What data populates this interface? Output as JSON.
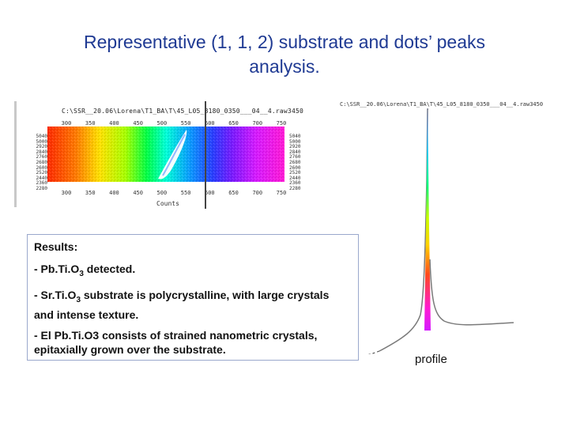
{
  "slide": {
    "title_line1": "Representative (1, 1, 2) substrate and dots’ peaks",
    "title_line2": "analysis."
  },
  "map_panel": {
    "file_label": "C:\\SSR__20.06\\Lorena\\T1_BA\\T\\45_L05_8180_0350___04__4.raw3450",
    "top_ticks": [
      "300",
      "350",
      "400",
      "450",
      "500",
      "550",
      "600",
      "650",
      "700",
      "750"
    ],
    "bottom_ticks": [
      "300",
      "350",
      "400",
      "450",
      "500",
      "550",
      "600",
      "650",
      "700",
      "750"
    ],
    "left_ticks": [
      "5040",
      "5000",
      "2920",
      "2840",
      "2760",
      "2680",
      "2600",
      "2520",
      "2440",
      "2360",
      "2280"
    ],
    "right_ticks": [
      "5040",
      "5000",
      "2920",
      "2840",
      "2760",
      "2680",
      "2600",
      "2520",
      "2440",
      "2360",
      "2280"
    ],
    "x_axis_label": "Counts"
  },
  "results": {
    "heading": "Results:",
    "item1_pre": "- Pb.Ti.O",
    "item1_sub": "3",
    "item1_post": " detected.",
    "item2_pre": "- Sr.Ti.O",
    "item2_sub": "3",
    "item2_post": " substrate is polycrystalline, with large crystals and intense texture.",
    "item3": "- El Pb.Ti.O3 consists of strained nanometric crystals, epitaxially grown over the substrate."
  },
  "profile_panel": {
    "file_label": "C:\\SSR__20.06\\Lorena\\T1_BA\\T\\45_L05_8180_0350___04__4.raw3450",
    "label": "profile"
  },
  "colors": {
    "title": "#1f3a93",
    "box_border": "#9aa8cc"
  }
}
